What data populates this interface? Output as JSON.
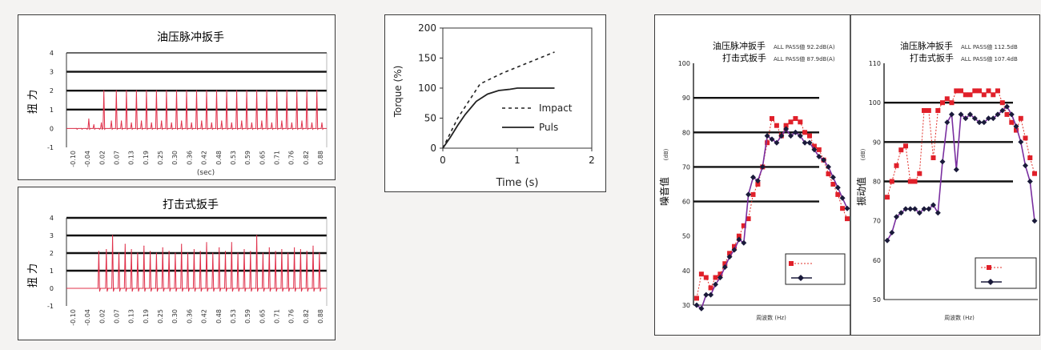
{
  "colors": {
    "pulse": "#e0304a",
    "grid": "#111111",
    "pass_red": "#e0202a",
    "pass_black": "#1a1a3a",
    "curve_purple": "#7a2fa0",
    "red_dot_line": "#e0302a"
  },
  "chart_data": [
    {
      "id": "oil",
      "type": "line",
      "title": "油压脉冲扳手",
      "ylabel": "扭 力",
      "xlabel": "(sec)",
      "ylim": [
        -1,
        4
      ],
      "yticks": [
        "4",
        "3",
        "2",
        "1",
        "0",
        "-1"
      ],
      "thick_grid_values": [
        3,
        2,
        1
      ],
      "x_ticks": [
        "-0.10",
        "-0.04",
        "0.02",
        "0.07",
        "0.13",
        "0.19",
        "0.25",
        "0.30",
        "0.36",
        "0.42",
        "0.48",
        "0.53",
        "0.59",
        "0.65",
        "0.71",
        "0.76",
        "0.82",
        "0.88"
      ],
      "series": [
        {
          "x": [
            -0.08,
            -0.06,
            -0.04,
            -0.03,
            -0.01,
            0.01,
            0.02,
            0.03,
            0.06,
            0.08,
            0.1,
            0.12,
            0.14,
            0.16,
            0.18,
            0.2,
            0.22,
            0.24,
            0.26,
            0.28,
            0.3,
            0.32,
            0.34,
            0.36,
            0.38,
            0.4,
            0.42,
            0.44,
            0.46,
            0.48,
            0.5,
            0.52,
            0.54,
            0.56,
            0.58,
            0.6,
            0.62,
            0.64,
            0.66,
            0.68,
            0.7,
            0.72,
            0.74,
            0.76,
            0.78,
            0.8,
            0.82,
            0.84,
            0.86,
            0.88,
            0.9
          ],
          "y": [
            0,
            0,
            0,
            0.5,
            0.2,
            0,
            0.3,
            2.0,
            0.4,
            2.0,
            0.4,
            2.0,
            0.3,
            2.0,
            0.4,
            2.0,
            0.3,
            2.0,
            0.4,
            2.0,
            0.3,
            2.0,
            0.4,
            2.0,
            0.3,
            2.0,
            0.4,
            2.0,
            0.3,
            2.0,
            0.4,
            2.0,
            0.3,
            2.0,
            0.4,
            2.0,
            0.3,
            2.0,
            0.4,
            2.0,
            0.3,
            2.0,
            0.4,
            2.0,
            0.3,
            2.0,
            0.4,
            2.0,
            0.3,
            2.0,
            0.3
          ]
        }
      ]
    },
    {
      "id": "impact",
      "type": "line",
      "title": "打击式扳手",
      "ylabel": "扭 力",
      "xlabel": "",
      "ylim": [
        -1,
        4
      ],
      "yticks": [
        "4",
        "3",
        "2",
        "1",
        "0",
        "-1"
      ],
      "thick_grid_values": [
        4,
        3,
        2,
        1
      ],
      "x_ticks": [
        "-0.10",
        "-0.04",
        "0.02",
        "0.07",
        "0.13",
        "0.19",
        "0.25",
        "0.30",
        "0.36",
        "0.42",
        "0.48",
        "0.53",
        "0.59",
        "0.65",
        "0.71",
        "0.76",
        "0.82",
        "0.88"
      ],
      "series": [
        {
          "x": [
            0.01,
            0.04,
            0.065,
            0.09,
            0.115,
            0.14,
            0.165,
            0.19,
            0.215,
            0.24,
            0.265,
            0.29,
            0.315,
            0.34,
            0.365,
            0.39,
            0.415,
            0.44,
            0.465,
            0.49,
            0.515,
            0.54,
            0.565,
            0.59,
            0.615,
            0.64,
            0.665,
            0.69,
            0.715,
            0.74,
            0.765,
            0.79,
            0.815,
            0.84,
            0.865,
            0.89
          ],
          "y": [
            2.1,
            2.2,
            3.0,
            2.0,
            2.5,
            2.2,
            2.0,
            2.4,
            2.1,
            2.0,
            2.3,
            2.1,
            2.0,
            2.5,
            2.0,
            2.2,
            2.1,
            2.6,
            2.0,
            2.3,
            2.1,
            2.6,
            2.0,
            2.2,
            2.1,
            3.0,
            2.0,
            2.3,
            2.1,
            2.2,
            2.0,
            2.3,
            2.2,
            2.1,
            2.4,
            2.0
          ]
        }
      ]
    },
    {
      "id": "torque",
      "type": "line",
      "xlabel": "Time (s)",
      "ylabel": "Torque (%)",
      "xlim": [
        0,
        2
      ],
      "ylim": [
        0,
        200
      ],
      "xticks": [
        "0",
        "1",
        "2"
      ],
      "yticks": [
        "200",
        "150",
        "100",
        "50",
        "0"
      ],
      "series": [
        {
          "name": "Impact",
          "style": "dashed",
          "x": [
            0,
            0.2,
            0.5,
            0.8,
            1.1,
            1.5
          ],
          "y": [
            0,
            50,
            107,
            125,
            140,
            160
          ]
        },
        {
          "name": "Puls",
          "style": "solid",
          "x": [
            0,
            0.1,
            0.2,
            0.3,
            0.45,
            0.6,
            0.75,
            0.9,
            1.0,
            1.1,
            1.5
          ],
          "y": [
            0,
            18,
            38,
            56,
            78,
            90,
            96,
            98,
            100,
            100,
            100
          ]
        }
      ]
    },
    {
      "id": "noise",
      "type": "line",
      "ylabel": "噪音值",
      "yunit": "(dB)",
      "xlabel": "周波数 (Hz)",
      "ylim": [
        30,
        100
      ],
      "yticks": [
        "100",
        "90",
        "80",
        "70",
        "60",
        "50",
        "40",
        "30"
      ],
      "thick_grid_values": [
        90,
        80,
        70,
        60
      ],
      "legend_lines": [
        {
          "name": "油压脉冲扳手",
          "text": "ALL PASS値  92.2dB(A)"
        },
        {
          "name": "打击式扳手",
          "text": "ALL PASS値  87.9dB(A)"
        }
      ],
      "series": [
        {
          "style": "red-dotted-squares",
          "x": [
            0,
            1,
            2,
            3,
            4,
            5,
            6,
            7,
            8,
            9,
            10,
            11,
            12,
            13,
            14,
            15,
            16,
            17,
            18,
            19,
            20,
            21,
            22,
            23,
            24,
            25,
            26,
            27,
            28,
            29,
            30,
            31,
            32
          ],
          "y": [
            32,
            39,
            38,
            35,
            38,
            39,
            42,
            45,
            47,
            50,
            53,
            55,
            62,
            65,
            70,
            77,
            84,
            82,
            79,
            82,
            83,
            84,
            83,
            80,
            79,
            76,
            75,
            72,
            68,
            65,
            62,
            58,
            55
          ]
        },
        {
          "style": "black-diamonds",
          "x": [
            0,
            1,
            2,
            3,
            4,
            5,
            6,
            7,
            8,
            9,
            10,
            11,
            12,
            13,
            14,
            15,
            16,
            17,
            18,
            19,
            20,
            21,
            22,
            23,
            24,
            25,
            26,
            27,
            28,
            29,
            30,
            31,
            32
          ],
          "y": [
            30,
            29,
            33,
            33,
            36,
            38,
            41,
            44,
            46,
            49,
            48,
            62,
            67,
            66,
            70,
            79,
            78,
            77,
            79,
            81,
            79,
            80,
            79,
            77,
            77,
            75,
            73,
            72,
            70,
            67,
            64,
            61,
            58
          ]
        }
      ]
    },
    {
      "id": "vibration",
      "type": "line",
      "ylabel": "振动值",
      "yunit": "(dB)",
      "xlabel": "周波数 (Hz)",
      "ylim": [
        50,
        110
      ],
      "yticks": [
        "110",
        "100",
        "90",
        "80",
        "70",
        "60",
        "50"
      ],
      "thick_grid_values": [
        100,
        90,
        80
      ],
      "legend_lines": [
        {
          "name": "油压脉冲扳手",
          "text": "ALL PASS値  112.5dB"
        },
        {
          "name": "打击式扳手",
          "text": "ALL PASS値  107.4dB"
        }
      ],
      "series": [
        {
          "style": "red-dotted-squares",
          "x": [
            0,
            1,
            2,
            3,
            4,
            5,
            6,
            7,
            8,
            9,
            10,
            11,
            12,
            13,
            14,
            15,
            16,
            17,
            18,
            19,
            20,
            21,
            22,
            23,
            24,
            25,
            26,
            27,
            28,
            29,
            30,
            31,
            32
          ],
          "y": [
            76,
            80,
            84,
            88,
            89,
            80,
            80,
            82,
            98,
            98,
            86,
            98,
            100,
            101,
            100,
            103,
            103,
            102,
            102,
            103,
            103,
            102,
            103,
            102,
            103,
            100,
            97,
            95,
            93,
            96,
            91,
            86,
            82
          ]
        },
        {
          "style": "black-diamonds",
          "x": [
            0,
            1,
            2,
            3,
            4,
            5,
            6,
            7,
            8,
            9,
            10,
            11,
            12,
            13,
            14,
            15,
            16,
            17,
            18,
            19,
            20,
            21,
            22,
            23,
            24,
            25,
            26,
            27,
            28,
            29,
            30,
            31,
            32
          ],
          "y": [
            65,
            67,
            71,
            72,
            73,
            73,
            73,
            72,
            73,
            73,
            74,
            72,
            85,
            95,
            97,
            83,
            97,
            96,
            97,
            96,
            95,
            95,
            96,
            96,
            97,
            98,
            99,
            97,
            94,
            90,
            84,
            80,
            70
          ]
        }
      ]
    }
  ]
}
